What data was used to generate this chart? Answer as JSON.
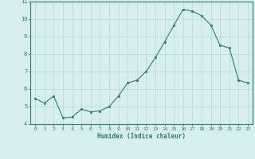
{
  "x": [
    0,
    1,
    2,
    3,
    4,
    5,
    6,
    7,
    8,
    9,
    10,
    11,
    12,
    13,
    14,
    15,
    16,
    17,
    18,
    19,
    20,
    21,
    22,
    23
  ],
  "y": [
    5.45,
    5.2,
    5.6,
    4.35,
    4.4,
    4.85,
    4.7,
    4.75,
    5.0,
    5.6,
    6.35,
    6.5,
    7.0,
    7.8,
    8.7,
    9.65,
    10.55,
    10.45,
    10.2,
    9.65,
    8.5,
    8.35,
    6.5,
    6.35
  ],
  "xlabel": "Humidex (Indice chaleur)",
  "xlim": [
    -0.5,
    23.5
  ],
  "ylim": [
    4,
    11
  ],
  "yticks": [
    4,
    5,
    6,
    7,
    8,
    9,
    10,
    11
  ],
  "xticks": [
    0,
    1,
    2,
    3,
    4,
    5,
    6,
    7,
    8,
    9,
    10,
    11,
    12,
    13,
    14,
    15,
    16,
    17,
    18,
    19,
    20,
    21,
    22,
    23
  ],
  "line_color": "#2e7d6e",
  "marker_color": "#2e7d6e",
  "bg_color": "#d6eeee",
  "grid_color": "#b8d8d8",
  "axis_color": "#2e7d6e",
  "tick_color": "#2e7d6e"
}
